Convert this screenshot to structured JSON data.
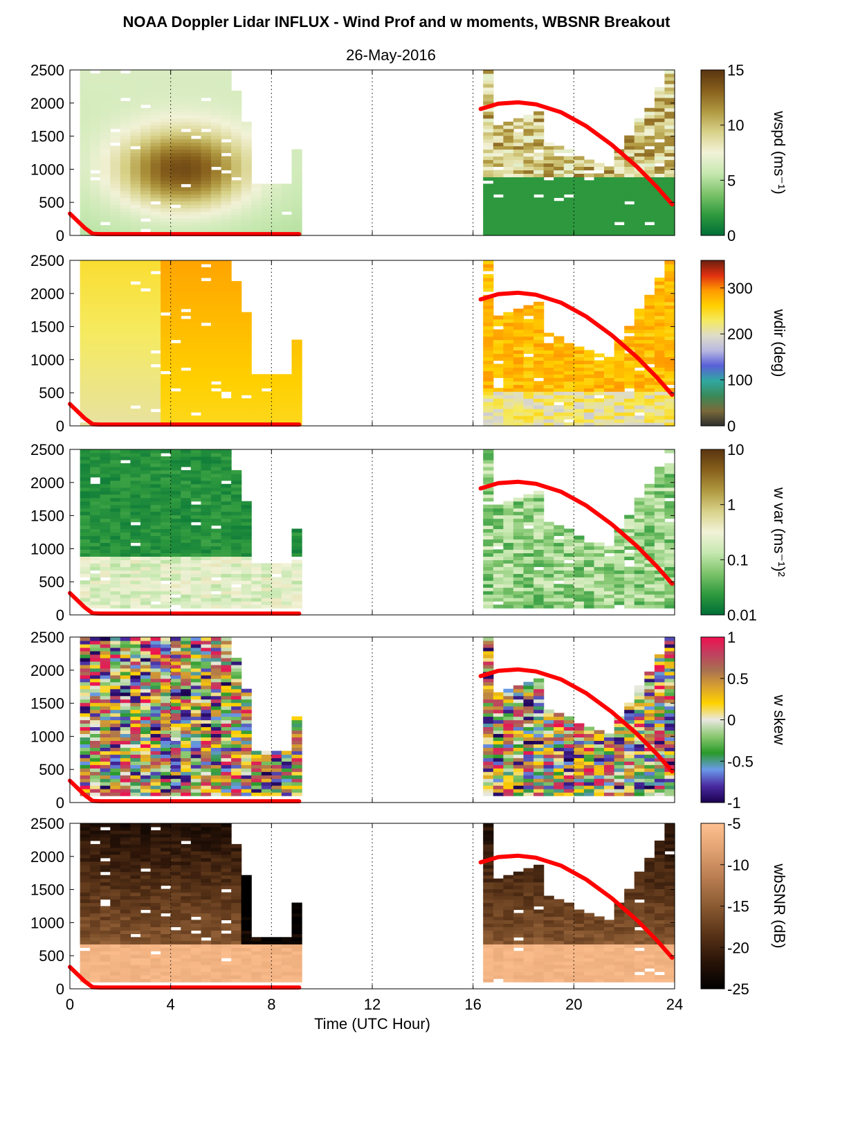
{
  "figure": {
    "title": "NOAA Doppler Lidar INFLUX - Wind Prof and w moments, WBSNR Breakout",
    "subtitle": "26-May-2016"
  },
  "chart_data": [
    {
      "type": "heatmap",
      "variable": "wspd",
      "xlabel": "",
      "ylabel": "",
      "xlim": [
        0,
        24
      ],
      "ylim": [
        0,
        2500
      ],
      "yticks": [
        0,
        500,
        1000,
        1500,
        2000,
        2500
      ],
      "data_gap_hours": [
        9.3,
        16.3
      ],
      "colorbar": {
        "label": "wspd (ms⁻¹)",
        "range": [
          0,
          15
        ],
        "ticks": [
          0,
          5,
          10,
          15
        ],
        "colors": [
          "#006e37",
          "#2f9a3e",
          "#7cc36a",
          "#c6e8b0",
          "#f2f2d8",
          "#d8d28a",
          "#b09840",
          "#87601c",
          "#5a3410"
        ]
      },
      "curve": {
        "color": "#ff0000",
        "segments": [
          {
            "x": [
              0.0,
              0.3,
              0.6,
              0.9,
              1.2,
              9.1
            ],
            "y": [
              330,
              220,
              110,
              25,
              20,
              20
            ]
          },
          {
            "x": [
              16.3,
              17.0,
              17.8,
              18.5,
              19.5,
              20.5,
              21.5,
              22.5,
              23.3,
              23.9
            ],
            "y": [
              1910,
              1990,
              2010,
              1980,
              1860,
              1650,
              1370,
              1040,
              730,
              470
            ]
          }
        ]
      }
    },
    {
      "type": "heatmap",
      "variable": "wdir",
      "xlim": [
        0,
        24
      ],
      "ylim": [
        0,
        2500
      ],
      "yticks": [
        0,
        500,
        1000,
        1500,
        2000,
        2500
      ],
      "colorbar": {
        "label": "wdir (deg)",
        "range": [
          0,
          360
        ],
        "ticks": [
          0,
          100,
          200,
          300
        ],
        "colors": [
          "#2e2e2e",
          "#7a6a3a",
          "#3a8a5a",
          "#30a8a0",
          "#5a60d8",
          "#b8b8e0",
          "#dedcc8",
          "#f5ea60",
          "#ffd000",
          "#ff9a00",
          "#e03010",
          "#6a2010"
        ]
      },
      "curve": {
        "color": "#ff0000",
        "segments": [
          {
            "x": [
              0.0,
              0.3,
              0.6,
              0.9,
              1.2,
              9.1
            ],
            "y": [
              330,
              220,
              110,
              25,
              20,
              20
            ]
          },
          {
            "x": [
              16.3,
              17.0,
              17.8,
              18.5,
              19.5,
              20.5,
              21.5,
              22.5,
              23.3,
              23.9
            ],
            "y": [
              1910,
              1990,
              2010,
              1980,
              1860,
              1650,
              1370,
              1040,
              730,
              470
            ]
          }
        ]
      }
    },
    {
      "type": "heatmap",
      "variable": "w var",
      "xlim": [
        0,
        24
      ],
      "ylim": [
        0,
        2500
      ],
      "yticks": [
        0,
        500,
        1000,
        1500,
        2000,
        2500
      ],
      "colorbar": {
        "label": "w var (ms⁻¹)²",
        "scale": "log",
        "range": [
          0.01,
          10
        ],
        "ticks": [
          "0.01",
          "0.1",
          "1",
          "10"
        ],
        "colors": [
          "#006e37",
          "#2f9a3e",
          "#7cc36a",
          "#c6e8b0",
          "#f2f2d8",
          "#d8d28a",
          "#b09840",
          "#87601c",
          "#5a3410"
        ]
      },
      "curve": {
        "color": "#ff0000",
        "segments": [
          {
            "x": [
              0.0,
              0.3,
              0.6,
              0.9,
              1.2,
              9.1
            ],
            "y": [
              330,
              220,
              110,
              25,
              20,
              20
            ]
          },
          {
            "x": [
              16.3,
              17.0,
              17.8,
              18.5,
              19.5,
              20.5,
              21.5,
              22.5,
              23.3,
              23.9
            ],
            "y": [
              1910,
              1990,
              2010,
              1980,
              1860,
              1650,
              1370,
              1040,
              730,
              470
            ]
          }
        ]
      }
    },
    {
      "type": "heatmap",
      "variable": "w skew",
      "xlim": [
        0,
        24
      ],
      "ylim": [
        0,
        2500
      ],
      "yticks": [
        0,
        500,
        1000,
        1500,
        2000,
        2500
      ],
      "colorbar": {
        "label": "w skew",
        "range": [
          -1,
          1
        ],
        "ticks": [
          "-1",
          "-0.5",
          "0",
          "0.5",
          "1"
        ],
        "colors": [
          "#1a0050",
          "#4a2aa0",
          "#6a9ae8",
          "#2a9a2a",
          "#8ac870",
          "#e8e8e0",
          "#ffd200",
          "#d8a030",
          "#a87050",
          "#c04060",
          "#f01050"
        ]
      },
      "curve": {
        "color": "#ff0000",
        "segments": [
          {
            "x": [
              0.0,
              0.3,
              0.6,
              0.9,
              1.2,
              9.1
            ],
            "y": [
              330,
              220,
              110,
              25,
              20,
              20
            ]
          },
          {
            "x": [
              16.3,
              17.0,
              17.8,
              18.5,
              19.5,
              20.5,
              21.5,
              22.5,
              23.3,
              23.9
            ],
            "y": [
              1910,
              1990,
              2010,
              1980,
              1860,
              1650,
              1370,
              1040,
              730,
              470
            ]
          }
        ]
      }
    },
    {
      "type": "heatmap",
      "variable": "wbSNR",
      "xlabel": "Time (UTC Hour)",
      "xticks": [
        0,
        4,
        8,
        12,
        16,
        20,
        24
      ],
      "xlim": [
        0,
        24
      ],
      "ylim": [
        0,
        2500
      ],
      "yticks": [
        0,
        500,
        1000,
        1500,
        2000,
        2500
      ],
      "colorbar": {
        "label": "wbSNR (dB)",
        "range": [
          -25,
          -5
        ],
        "ticks": [
          "-25",
          "-20",
          "-15",
          "-10",
          "-5"
        ],
        "colors": [
          "#000000",
          "#2a1408",
          "#5a3418",
          "#8a5a32",
          "#b87c50",
          "#e0a070",
          "#ffc090"
        ]
      },
      "curve": {
        "color": "#ff0000",
        "segments": [
          {
            "x": [
              0.0,
              0.3,
              0.6,
              0.9,
              1.2,
              9.1
            ],
            "y": [
              330,
              220,
              110,
              25,
              20,
              20
            ]
          },
          {
            "x": [
              16.3,
              17.0,
              17.8,
              18.5,
              19.5,
              20.5,
              21.5,
              22.5,
              23.3,
              23.9
            ],
            "y": [
              1910,
              1990,
              2010,
              1980,
              1860,
              1650,
              1370,
              1040,
              730,
              470
            ]
          }
        ]
      }
    }
  ]
}
